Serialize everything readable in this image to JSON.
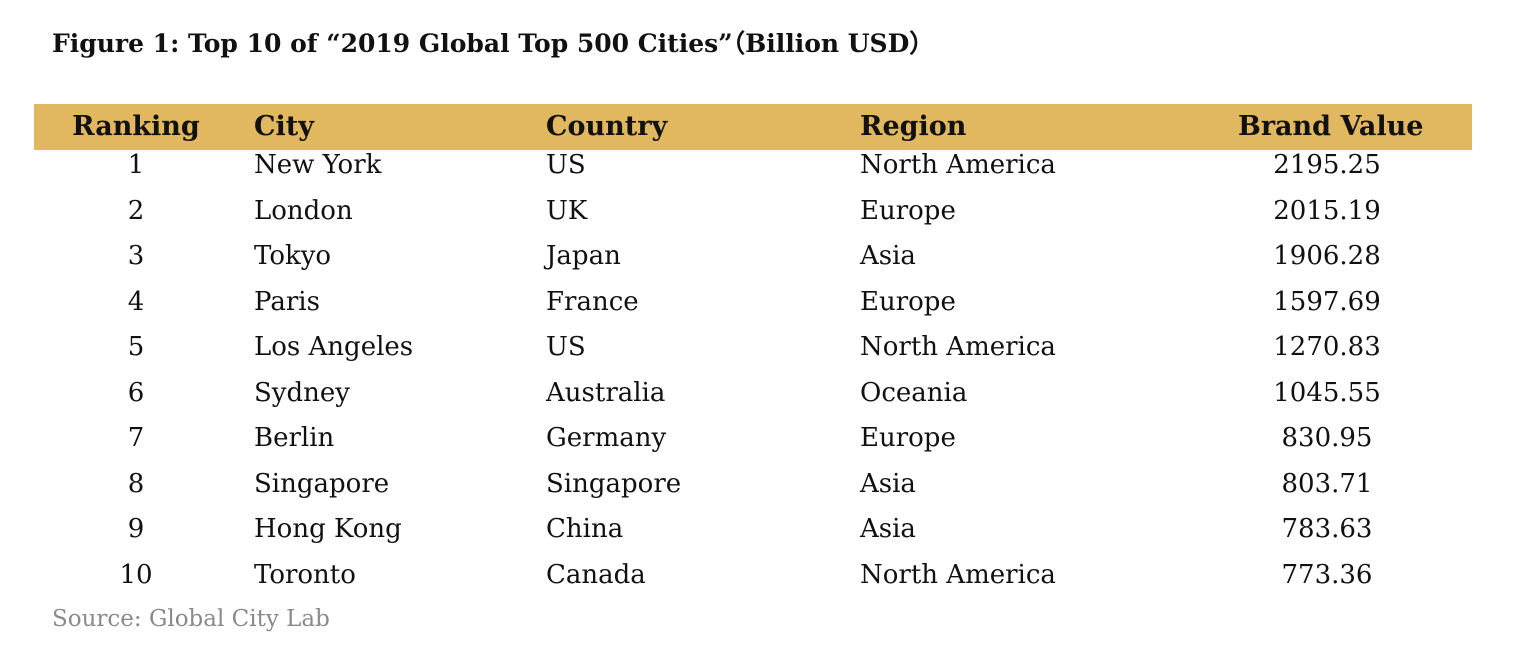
{
  "title": "Figure 1: Top 10 of “2019 Global Top 500 Cities”（Billion USD）",
  "table": {
    "header_color": "#e1b75f",
    "headers": {
      "ranking": "Ranking",
      "city": "City",
      "country": "Country",
      "region": "Region",
      "brand_value": "Brand Value"
    },
    "rows": [
      {
        "ranking": "1",
        "city": "New York",
        "country": "US",
        "region": "North America",
        "brand_value": "2195.25"
      },
      {
        "ranking": "2",
        "city": "London",
        "country": "UK",
        "region": "Europe",
        "brand_value": "2015.19"
      },
      {
        "ranking": "3",
        "city": "Tokyo",
        "country": "Japan",
        "region": "Asia",
        "brand_value": "1906.28"
      },
      {
        "ranking": "4",
        "city": "Paris",
        "country": "France",
        "region": "Europe",
        "brand_value": "1597.69"
      },
      {
        "ranking": "5",
        "city": "Los Angeles",
        "country": "US",
        "region": "North America",
        "brand_value": "1270.83"
      },
      {
        "ranking": "6",
        "city": "Sydney",
        "country": "Australia",
        "region": "Oceania",
        "brand_value": "1045.55"
      },
      {
        "ranking": "7",
        "city": "Berlin",
        "country": "Germany",
        "region": "Europe",
        "brand_value": "830.95"
      },
      {
        "ranking": "8",
        "city": "Singapore",
        "country": "Singapore",
        "region": "Asia",
        "brand_value": "803.71"
      },
      {
        "ranking": "9",
        "city": "Hong Kong",
        "country": "China",
        "region": "Asia",
        "brand_value": "783.63"
      },
      {
        "ranking": "10",
        "city": "Toronto",
        "country": "Canada",
        "region": "North America",
        "brand_value": "773.36"
      }
    ]
  },
  "source": "Source: Global City Lab"
}
